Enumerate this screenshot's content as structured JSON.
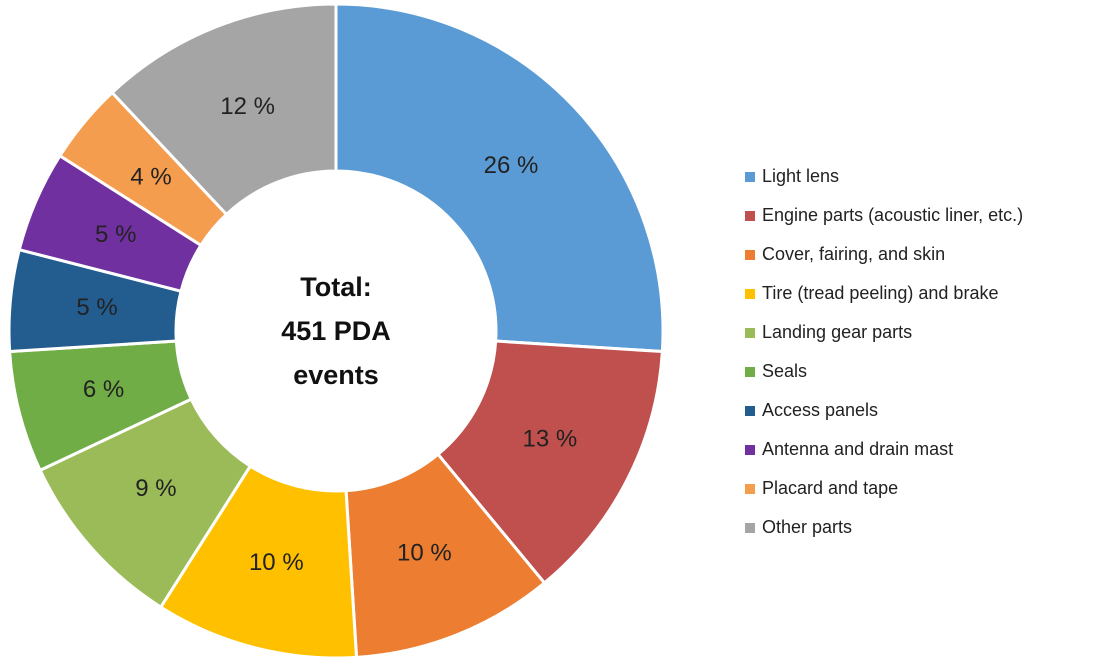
{
  "chart_data": {
    "type": "donut",
    "center_text": [
      "Total:",
      "451 PDA",
      "events"
    ],
    "categories": [
      "Light lens",
      "Engine parts (acoustic liner, etc.)",
      "Cover, fairing, and skin",
      "Tire (tread peeling) and brake",
      "Landing gear parts",
      "Seals",
      "Access panels",
      "Antenna and drain mast",
      "Placard and tape",
      "Other parts"
    ],
    "values": [
      26,
      13,
      10,
      10,
      9,
      6,
      5,
      5,
      4,
      12
    ],
    "value_labels": [
      "26 %",
      "13 %",
      "10 %",
      "10 %",
      "9 %",
      "6 %",
      "5 %",
      "5 %",
      "4 %",
      "12 %"
    ],
    "colors": [
      "#5b9bd5",
      "#c0504d",
      "#ed7d31",
      "#ffc000",
      "#9bbb59",
      "#70ad47",
      "#235d8f",
      "#7030a0",
      "#f59d4f",
      "#a5a5a5"
    ],
    "legend": "right"
  }
}
